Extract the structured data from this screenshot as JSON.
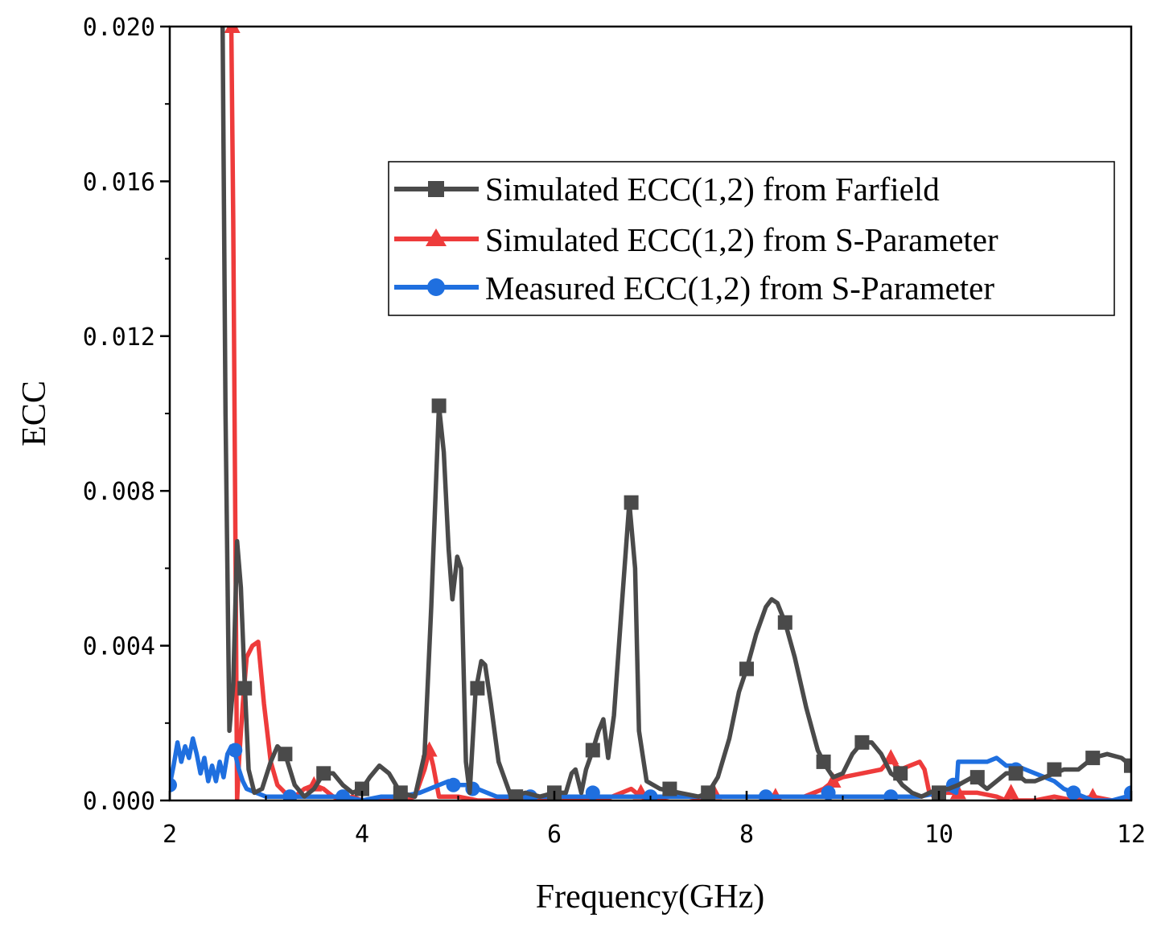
{
  "chart_data": {
    "type": "line",
    "title": "",
    "xlabel": "Frequency(GHz)",
    "ylabel": "ECC",
    "xlim": [
      2,
      12
    ],
    "ylim": [
      0,
      0.02
    ],
    "xticks": [
      2,
      4,
      6,
      8,
      10,
      12
    ],
    "xtick_labels": [
      "2",
      "4",
      "6",
      "8",
      "10",
      "12"
    ],
    "yticks": [
      0,
      0.004,
      0.008,
      0.012,
      0.016,
      0.02
    ],
    "ytick_labels": [
      "0.000",
      "0.004",
      "0.008",
      "0.012",
      "0.016",
      "0.020"
    ],
    "grid": false,
    "legend_position": "top-right",
    "series": [
      {
        "name": "Simulated ECC(1,2) from Farfield",
        "color": "#4a4a4a",
        "marker": "square",
        "x": [
          2.55,
          2.58,
          2.62,
          2.66,
          2.7,
          2.74,
          2.78,
          2.82,
          2.88,
          2.96,
          3.05,
          3.12,
          3.2,
          3.3,
          3.4,
          3.5,
          3.6,
          3.7,
          3.8,
          3.9,
          4.0,
          4.08,
          4.18,
          4.28,
          4.4,
          4.55,
          4.65,
          4.72,
          4.8,
          4.85,
          4.9,
          4.94,
          4.99,
          5.03,
          5.08,
          5.12,
          5.18,
          5.24,
          5.28,
          5.34,
          5.42,
          5.55,
          5.7,
          5.85,
          6.0,
          6.12,
          6.18,
          6.22,
          6.28,
          6.33,
          6.4,
          6.46,
          6.51,
          6.56,
          6.62,
          6.7,
          6.78,
          6.84,
          6.88,
          6.96,
          7.1,
          7.3,
          7.5,
          7.6,
          7.7,
          7.82,
          7.92,
          8.0,
          8.1,
          8.2,
          8.26,
          8.32,
          8.4,
          8.5,
          8.62,
          8.74,
          8.82,
          8.9,
          9.0,
          9.1,
          9.2,
          9.3,
          9.4,
          9.5,
          9.56,
          9.62,
          9.72,
          9.82,
          9.9,
          10.0,
          10.1,
          10.2,
          10.35,
          10.5,
          10.6,
          10.7,
          10.8,
          10.9,
          11.0,
          11.1,
          11.2,
          11.3,
          11.45,
          11.6,
          11.75,
          11.9,
          12.0
        ],
        "y": [
          0.02,
          0.01,
          0.0018,
          0.003,
          0.0067,
          0.0055,
          0.003,
          0.0008,
          0.0002,
          0.0003,
          0.001,
          0.0014,
          0.0012,
          0.0004,
          0.0001,
          0.0003,
          0.0007,
          0.0007,
          0.0004,
          0.0002,
          0.0003,
          0.0006,
          0.0009,
          0.0007,
          0.0002,
          0.0001,
          0.0012,
          0.005,
          0.0102,
          0.009,
          0.0065,
          0.0052,
          0.0063,
          0.006,
          0.001,
          0.0002,
          0.0028,
          0.0036,
          0.0035,
          0.0025,
          0.001,
          0.0001,
          0.0002,
          0.0001,
          0.0002,
          0.0002,
          0.0007,
          0.0008,
          0.0002,
          0.0008,
          0.0013,
          0.0018,
          0.0021,
          0.0011,
          0.0022,
          0.005,
          0.0077,
          0.006,
          0.0018,
          0.0005,
          0.0003,
          0.0002,
          0.0001,
          0.0002,
          0.0006,
          0.0016,
          0.0028,
          0.0034,
          0.0043,
          0.005,
          0.0052,
          0.0051,
          0.0046,
          0.0037,
          0.0024,
          0.0013,
          0.0009,
          0.0006,
          0.0007,
          0.0012,
          0.0015,
          0.0015,
          0.0012,
          0.0007,
          0.0006,
          0.0004,
          0.0002,
          0.0001,
          0.0002,
          0.0003,
          0.0003,
          0.0004,
          0.0006,
          0.0003,
          0.0005,
          0.0007,
          0.0007,
          0.0005,
          0.0005,
          0.0006,
          0.0007,
          0.0008,
          0.0008,
          0.0011,
          0.0012,
          0.0011,
          0.0009
        ],
        "marker_x": [
          2.78,
          3.2,
          3.6,
          4.0,
          4.4,
          4.8,
          5.2,
          5.6,
          6.0,
          6.4,
          6.8,
          7.2,
          7.6,
          8.0,
          8.4,
          8.8,
          9.2,
          9.6,
          10.0,
          10.4,
          10.8,
          11.2,
          11.6,
          12.0
        ],
        "marker_y": [
          0.0029,
          0.0012,
          0.0007,
          0.0003,
          0.0002,
          0.0102,
          0.0029,
          0.0001,
          0.0002,
          0.0013,
          0.0077,
          0.0003,
          0.0002,
          0.0034,
          0.0046,
          0.001,
          0.0015,
          0.0007,
          0.0002,
          0.0006,
          0.0007,
          0.0008,
          0.0011,
          0.0009
        ]
      },
      {
        "name": "Simulated ECC(1,2) from S-Parameter",
        "color": "#ee3b3b",
        "marker": "triangle",
        "x": [
          2.62,
          2.64,
          2.66,
          2.69,
          2.7,
          2.72,
          2.76,
          2.8,
          2.86,
          2.92,
          2.98,
          3.05,
          3.12,
          3.2,
          3.3,
          3.4,
          3.5,
          3.6,
          3.7,
          3.8,
          3.9,
          4.0,
          4.2,
          4.4,
          4.55,
          4.65,
          4.7,
          4.74,
          4.8,
          5.0,
          5.2,
          5.5,
          5.8,
          6.0,
          6.2,
          6.5,
          6.8,
          6.9,
          7.0,
          7.2,
          7.4,
          7.6,
          7.66,
          7.7,
          8.0,
          8.3,
          8.6,
          8.8,
          8.9,
          9.0,
          9.2,
          9.4,
          9.5,
          9.55,
          9.6,
          9.7,
          9.8,
          9.85,
          9.9,
          9.95,
          10.0,
          10.2,
          10.4,
          10.6,
          10.7,
          10.75,
          10.8,
          11.0,
          11.2,
          11.4,
          11.6,
          11.8,
          12.0
        ],
        "y": [
          0.02,
          0.02,
          0.015,
          0.004,
          0.0,
          0.001,
          0.0025,
          0.0037,
          0.004,
          0.0041,
          0.0025,
          0.001,
          0.0004,
          0.0002,
          0.0001,
          0.0003,
          0.0004,
          0.0003,
          0.0001,
          0.0,
          0.0001,
          0.0,
          0.0,
          0.0,
          0.0001,
          0.0008,
          0.0013,
          0.0009,
          0.0001,
          0.0001,
          0.0,
          0.0,
          0.0,
          0.0001,
          0.0,
          0.0,
          0.0003,
          0.0001,
          0.0,
          0.0001,
          0.0001,
          0.0,
          0.0002,
          0.0001,
          0.0001,
          0.0001,
          0.0001,
          0.0003,
          0.0005,
          0.0006,
          0.0007,
          0.0008,
          0.0011,
          0.0009,
          0.0008,
          0.0009,
          0.001,
          0.0008,
          0.0002,
          0.0001,
          0.0002,
          0.0002,
          0.0002,
          0.0001,
          0.0,
          0.0002,
          0.0,
          0.0,
          0.0001,
          0.0,
          0.0001,
          0.0,
          0.0
        ],
        "marker_x": [
          2.65,
          3.5,
          4.7,
          5.6,
          6.9,
          7.66,
          8.3,
          8.9,
          9.5,
          10.2,
          10.75,
          11.6
        ],
        "marker_y": [
          0.02,
          0.0004,
          0.0013,
          0.0,
          0.0002,
          0.0002,
          0.0001,
          0.0005,
          0.0011,
          0.0002,
          0.0002,
          0.0001
        ]
      },
      {
        "name": "Measured ECC(1,2) from S-Parameter",
        "color": "#1f6fdf",
        "marker": "circle",
        "x": [
          2.0,
          2.04,
          2.08,
          2.12,
          2.16,
          2.2,
          2.24,
          2.28,
          2.32,
          2.36,
          2.4,
          2.44,
          2.48,
          2.52,
          2.56,
          2.6,
          2.64,
          2.68,
          2.72,
          2.76,
          2.8,
          2.9,
          3.0,
          3.2,
          3.4,
          3.6,
          3.8,
          4.0,
          4.2,
          4.4,
          4.6,
          4.8,
          4.9,
          5.0,
          5.1,
          5.2,
          5.4,
          5.6,
          5.8,
          6.0,
          6.2,
          6.4,
          6.6,
          6.8,
          7.0,
          7.2,
          7.4,
          7.6,
          7.8,
          8.0,
          8.2,
          8.4,
          8.6,
          8.8,
          9.0,
          9.2,
          9.4,
          9.6,
          9.8,
          10.0,
          10.1,
          10.18,
          10.2,
          10.3,
          10.4,
          10.5,
          10.6,
          10.7,
          10.8,
          10.9,
          11.0,
          11.1,
          11.2,
          11.3,
          11.4,
          11.5,
          11.6,
          11.8,
          11.95,
          12.0
        ],
        "y": [
          0.0004,
          0.0009,
          0.0015,
          0.001,
          0.0014,
          0.0011,
          0.0016,
          0.0012,
          0.0007,
          0.0011,
          0.0005,
          0.0009,
          0.0005,
          0.001,
          0.0006,
          0.0012,
          0.0014,
          0.0012,
          0.0008,
          0.0005,
          0.0003,
          0.0002,
          0.0001,
          0.0001,
          0.0001,
          0.0001,
          0.0001,
          0.0,
          0.0001,
          0.0001,
          0.0002,
          0.0004,
          0.0005,
          0.0004,
          0.0004,
          0.0003,
          0.0001,
          0.0001,
          0.0001,
          0.0001,
          0.0001,
          0.0001,
          0.0001,
          0.0001,
          0.0001,
          0.0001,
          0.0001,
          0.0001,
          0.0001,
          0.0001,
          0.0001,
          0.0001,
          0.0001,
          0.0001,
          0.0001,
          0.0001,
          0.0001,
          0.0001,
          0.0001,
          0.0002,
          0.0003,
          0.0002,
          0.001,
          0.001,
          0.001,
          0.001,
          0.0011,
          0.0009,
          0.0009,
          0.0008,
          0.0007,
          0.0006,
          0.0005,
          0.0003,
          0.0002,
          0.0001,
          0.0,
          0.0,
          0.0001,
          0.0002
        ],
        "marker_x": [
          2.0,
          2.68,
          3.25,
          3.8,
          4.4,
          4.95,
          5.15,
          5.75,
          6.4,
          7.0,
          7.6,
          8.2,
          8.85,
          9.5,
          10.15,
          10.8,
          11.4,
          12.0
        ],
        "marker_y": [
          0.0004,
          0.0013,
          0.0001,
          0.0001,
          0.0001,
          0.0004,
          0.0003,
          0.0001,
          0.0002,
          0.0001,
          0.0001,
          0.0001,
          0.0002,
          0.0001,
          0.0004,
          0.0008,
          0.0002,
          0.0002
        ]
      }
    ]
  }
}
